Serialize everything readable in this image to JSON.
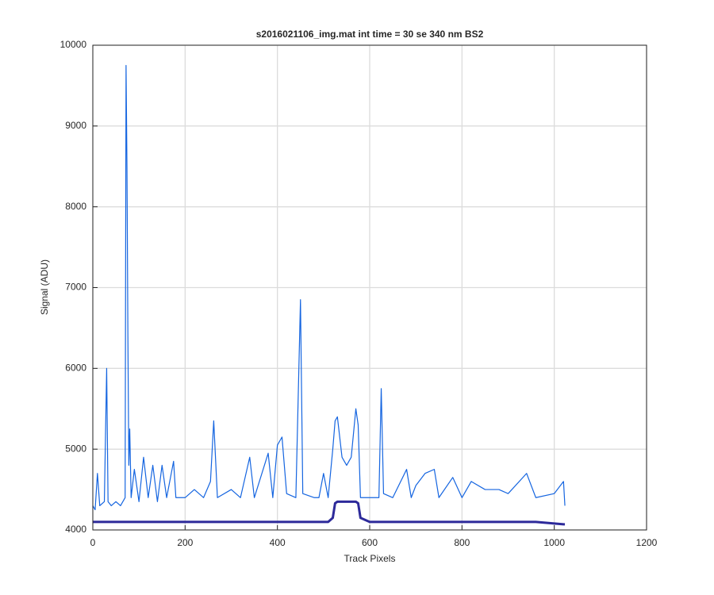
{
  "chart_data": {
    "type": "line",
    "title": "s2016021106_img.mat int time = 30 se  340 nm BS2",
    "x_label": "Track Pixels",
    "y_label": "Signal (ADU)",
    "x": [
      0,
      5,
      10,
      15,
      25,
      30,
      33,
      40,
      50,
      60,
      70,
      72,
      74,
      76,
      78,
      80,
      83,
      90,
      100,
      110,
      120,
      130,
      140,
      150,
      160,
      175,
      180,
      200,
      220,
      240,
      255,
      262,
      270,
      300,
      320,
      340,
      350,
      380,
      390,
      400,
      410,
      420,
      440,
      450,
      455,
      480,
      490,
      500,
      510,
      520,
      525,
      530,
      540,
      550,
      560,
      570,
      575,
      580,
      600,
      620,
      625,
      630,
      650,
      680,
      690,
      700,
      720,
      740,
      750,
      780,
      800,
      820,
      850,
      880,
      900,
      940,
      960,
      1000,
      1020,
      1023
    ],
    "series": [
      {
        "color": "#1565e0",
        "values": [
          4300,
          4250,
          4700,
          4300,
          4350,
          6000,
          4350,
          4300,
          4350,
          4300,
          4400,
          9750,
          8500,
          6400,
          4800,
          5250,
          4400,
          4750,
          4350,
          4900,
          4400,
          4800,
          4350,
          4800,
          4400,
          4850,
          4400,
          4400,
          4500,
          4400,
          4600,
          5350,
          4400,
          4500,
          4400,
          4900,
          4400,
          4950,
          4400,
          5050,
          5150,
          4450,
          4400,
          6850,
          4450,
          4400,
          4400,
          4700,
          4400,
          5000,
          5350,
          5400,
          4900,
          4800,
          4900,
          5500,
          5300,
          4400,
          4400,
          4400,
          5750,
          4450,
          4400,
          4750,
          4400,
          4550,
          4700,
          4750,
          4400,
          4650,
          4400,
          4600,
          4500,
          4500,
          4450,
          4700,
          4400,
          4450,
          4600,
          4300
        ]
      },
      {
        "color": "#2d2a9a",
        "values": [
          4100,
          4100,
          4100,
          4100,
          4100,
          4100,
          4100,
          4100,
          4100,
          4100,
          4100,
          4100,
          4100,
          4100,
          4100,
          4100,
          4100,
          4100,
          4100,
          4100,
          4100,
          4100,
          4100,
          4100,
          4100,
          4100,
          4100,
          4100,
          4100,
          4100,
          4100,
          4100,
          4100,
          4100,
          4100,
          4100,
          4100,
          4100,
          4100,
          4100,
          4100,
          4100,
          4100,
          4100,
          4100,
          4100,
          4100,
          4100,
          4100,
          4150,
          4330,
          4350,
          4350,
          4350,
          4350,
          4350,
          4330,
          4150,
          4100,
          4100,
          4100,
          4100,
          4100,
          4100,
          4100,
          4100,
          4100,
          4100,
          4100,
          4100,
          4100,
          4100,
          4100,
          4100,
          4100,
          4100,
          4100,
          4080,
          4070,
          4070
        ]
      }
    ],
    "xlim": [
      0,
      1200
    ],
    "xticks": [
      0,
      200,
      400,
      600,
      800,
      1000,
      1200
    ],
    "ylim": [
      4000,
      10000
    ],
    "yticks": [
      4000,
      5000,
      6000,
      7000,
      8000,
      9000,
      10000
    ],
    "grid": true
  }
}
